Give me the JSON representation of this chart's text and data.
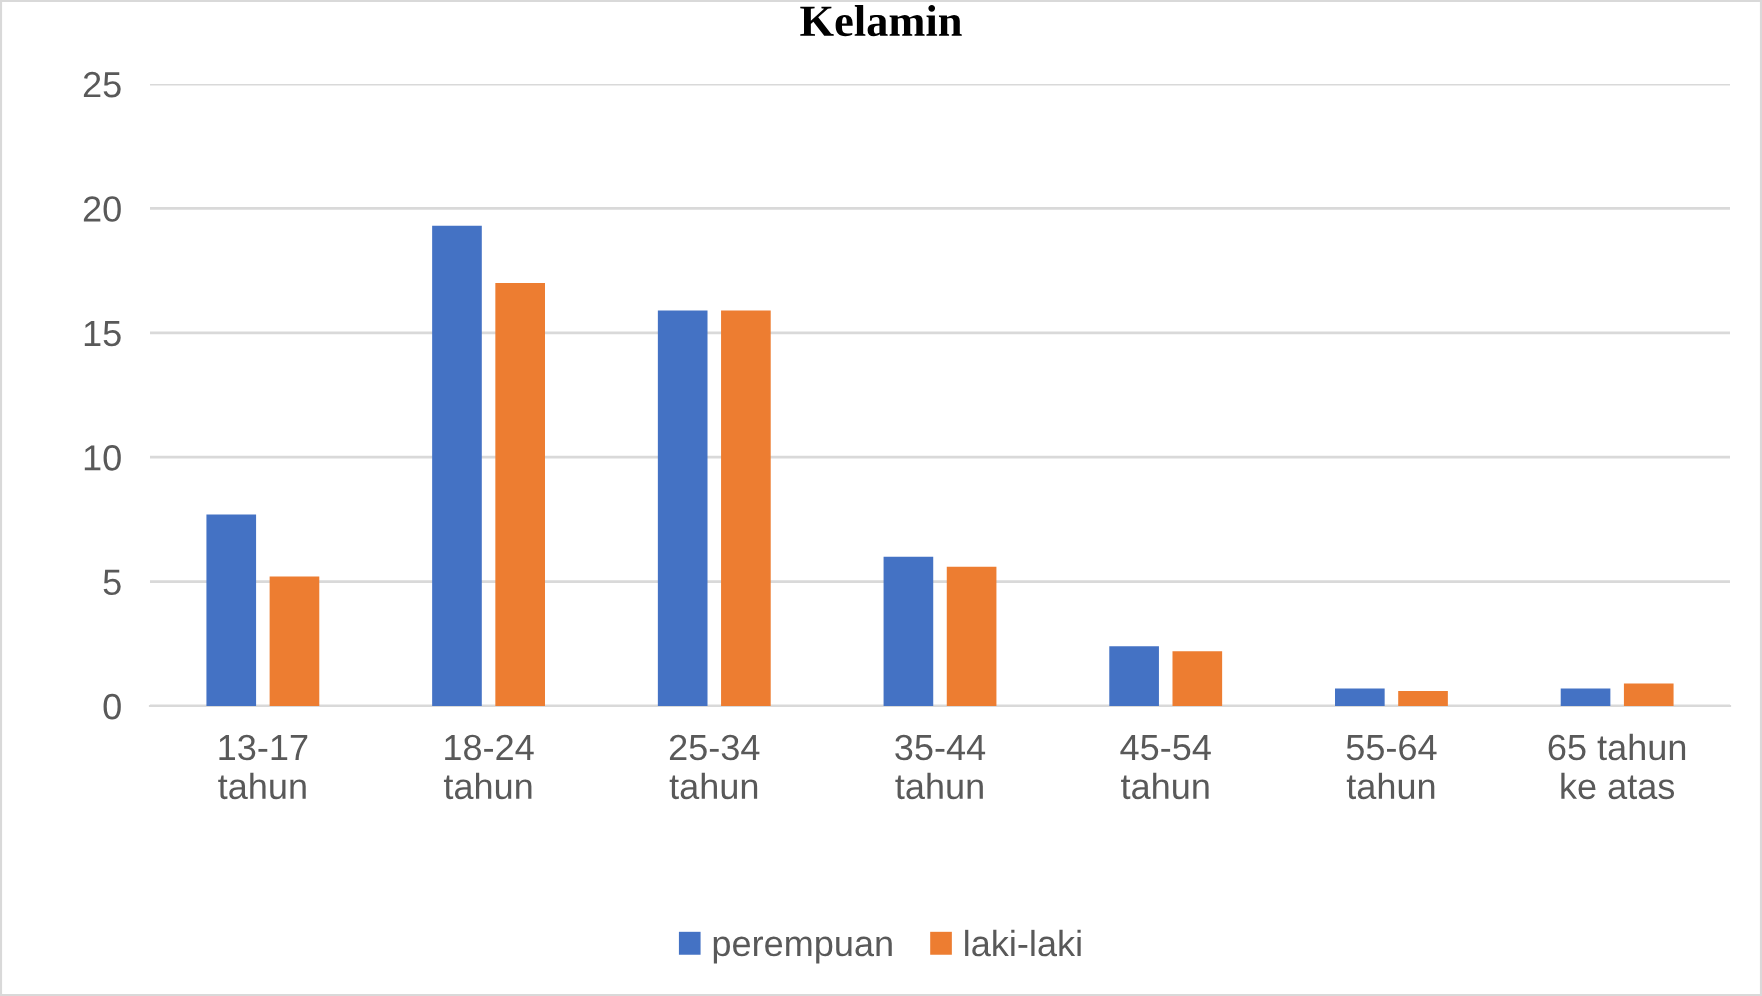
{
  "chart_data": {
    "type": "bar",
    "title": "Kelamin",
    "categories": [
      "13-17\ntahun",
      "18-24\ntahun",
      "25-34\ntahun",
      "35-44\ntahun",
      "45-54\ntahun",
      "55-64\ntahun",
      "65 tahun\nke atas"
    ],
    "series": [
      {
        "name": "perempuan",
        "color": "#4472c4",
        "values": [
          7.7,
          19.3,
          15.9,
          6.0,
          2.4,
          0.7,
          0.7
        ]
      },
      {
        "name": "laki-laki",
        "color": "#ed7d31",
        "values": [
          5.2,
          17.0,
          15.9,
          5.6,
          2.2,
          0.6,
          0.9
        ]
      }
    ],
    "ylim": [
      0,
      25
    ],
    "yticks": [
      0,
      5,
      10,
      15,
      20,
      25
    ],
    "grid": "y",
    "legend": "bottom"
  }
}
